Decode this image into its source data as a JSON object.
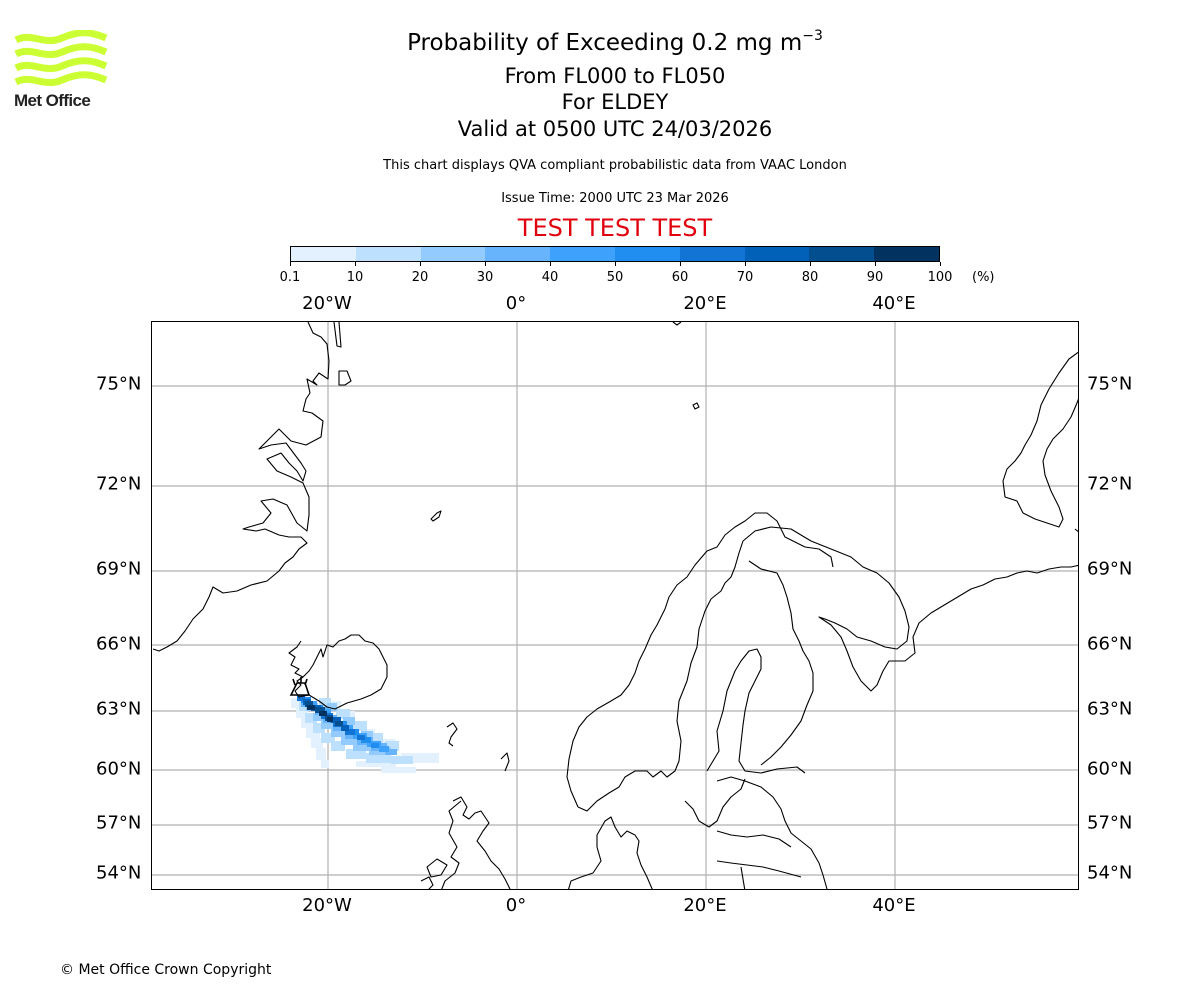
{
  "logo": {
    "text": "Met Office",
    "icon": "met-office-waves-logo",
    "color": "#ccff33"
  },
  "header": {
    "title_main": "Probability of Exceeding 0.2 mg m",
    "title_sup": "−3",
    "line2": "From FL000 to FL050",
    "line3": "For ELDEY",
    "line4": "Valid at 0500 UTC 24/03/2026",
    "description": "This chart displays QVA compliant probabilistic data from VAAC London",
    "issue_time": "Issue Time: 2000 UTC 23 Mar 2026",
    "test_banner": "TEST TEST TEST",
    "test_color": "#e0000e"
  },
  "colorbar": {
    "unit": "(%)",
    "ticks": [
      "0.1",
      "10",
      "20",
      "30",
      "40",
      "50",
      "60",
      "70",
      "80",
      "90",
      "100"
    ],
    "colors": [
      "#e3f1fe",
      "#bde0fe",
      "#93cbfe",
      "#67b4fc",
      "#3ea1fc",
      "#208ef1",
      "#1275d6",
      "#0161b8",
      "#034e8e",
      "#02325f"
    ]
  },
  "axes": {
    "lon_labels": [
      "20°W",
      "0°",
      "20°E",
      "40°E"
    ],
    "lat_labels": [
      "75°N",
      "72°N",
      "69°N",
      "66°N",
      "63°N",
      "60°N",
      "57°N",
      "54°N"
    ]
  },
  "footer": {
    "copyright": "© Met Office Crown Copyright"
  },
  "chart_data": {
    "type": "heatmap",
    "title": "Probability of Exceeding 0.2 mg m−3",
    "subtitle": "From FL000 to FL050 · For ELDEY · Valid at 0500 UTC 24/03/2026",
    "issue_time": "2000 UTC 23 Mar 2026",
    "source": "VAAC London",
    "volcano": {
      "name": "ELDEY",
      "lat": 63.7,
      "lon": -22.9
    },
    "projection": "Mercator",
    "lon_range": [
      -38.5,
      59.5
    ],
    "lat_range": [
      52.5,
      77.5
    ],
    "xticks": [
      -20,
      0,
      20,
      40
    ],
    "yticks": [
      75,
      72,
      69,
      66,
      63,
      60,
      57,
      54
    ],
    "grid": true,
    "color_levels": [
      0.1,
      10,
      20,
      30,
      40,
      50,
      60,
      70,
      80,
      90,
      100
    ],
    "color_unit": "%",
    "plume_description": "Ash probability plume extending SE from ELDEY (SW of Iceland) to approx 8°W, 60.3°N; max probability 80-100% near 21-19°W, 62-63°N",
    "plume_cells": [
      {
        "lon": -22.5,
        "lat": 63.5,
        "p": 85
      },
      {
        "lon": -21.5,
        "lat": 63.0,
        "p": 95
      },
      {
        "lon": -20.5,
        "lat": 62.7,
        "p": 90
      },
      {
        "lon": -19.5,
        "lat": 62.3,
        "p": 85
      },
      {
        "lon": -18.5,
        "lat": 61.9,
        "p": 75
      },
      {
        "lon": -17.5,
        "lat": 61.5,
        "p": 65
      },
      {
        "lon": -16.5,
        "lat": 61.2,
        "p": 55
      },
      {
        "lon": -15.0,
        "lat": 60.9,
        "p": 45
      },
      {
        "lon": -13.5,
        "lat": 60.6,
        "p": 35
      },
      {
        "lon": -11.5,
        "lat": 60.4,
        "p": 20
      },
      {
        "lon": -9.0,
        "lat": 60.3,
        "p": 5
      }
    ]
  }
}
